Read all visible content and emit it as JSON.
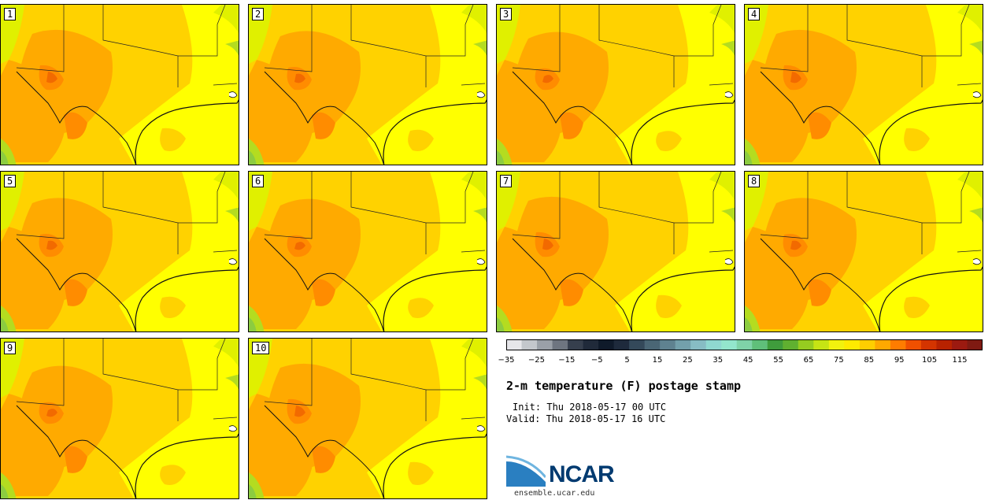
{
  "panels": [
    "1",
    "2",
    "3",
    "4",
    "5",
    "6",
    "7",
    "8",
    "9",
    "10"
  ],
  "title": "2-m temperature (F) postage stamp",
  "init": "Init: Thu 2018-05-17 00 UTC",
  "valid": "Valid: Thu 2018-05-17 16 UTC",
  "logo_text": "NCAR",
  "logo_url": "ensemble.ucar.edu",
  "colorbar": {
    "colors": [
      "#e6e6ea",
      "#c3c7cc",
      "#9aa0a8",
      "#6e7580",
      "#363f4d",
      "#202a3a",
      "#0f1a2a",
      "#1e2a3c",
      "#34495a",
      "#4a6675",
      "#5f8290",
      "#73a0ab",
      "#87bcc4",
      "#8fd8d0",
      "#93e6cc",
      "#7fd3a8",
      "#5fbf7a",
      "#3f9c3c",
      "#60b030",
      "#96cc20",
      "#c6e414",
      "#f2f20e",
      "#ffea00",
      "#ffce00",
      "#ffa800",
      "#ff7c00",
      "#f05000",
      "#d43400",
      "#b82200",
      "#9c1a10",
      "#7f1a12"
    ],
    "tick_labels": [
      "−35",
      "−25",
      "−15",
      "−5",
      "5",
      "15",
      "25",
      "35",
      "45",
      "55",
      "65",
      "75",
      "85",
      "95",
      "105",
      "115"
    ]
  },
  "map_colors": {
    "base": "#ffff00",
    "warm": "#ffd200",
    "hot": "#ffaa00",
    "hotter": "#ff8c00",
    "hottest": "#f26a00",
    "cool": "#e0f000",
    "cooler": "#b4dc20",
    "green": "#8ccc40"
  }
}
